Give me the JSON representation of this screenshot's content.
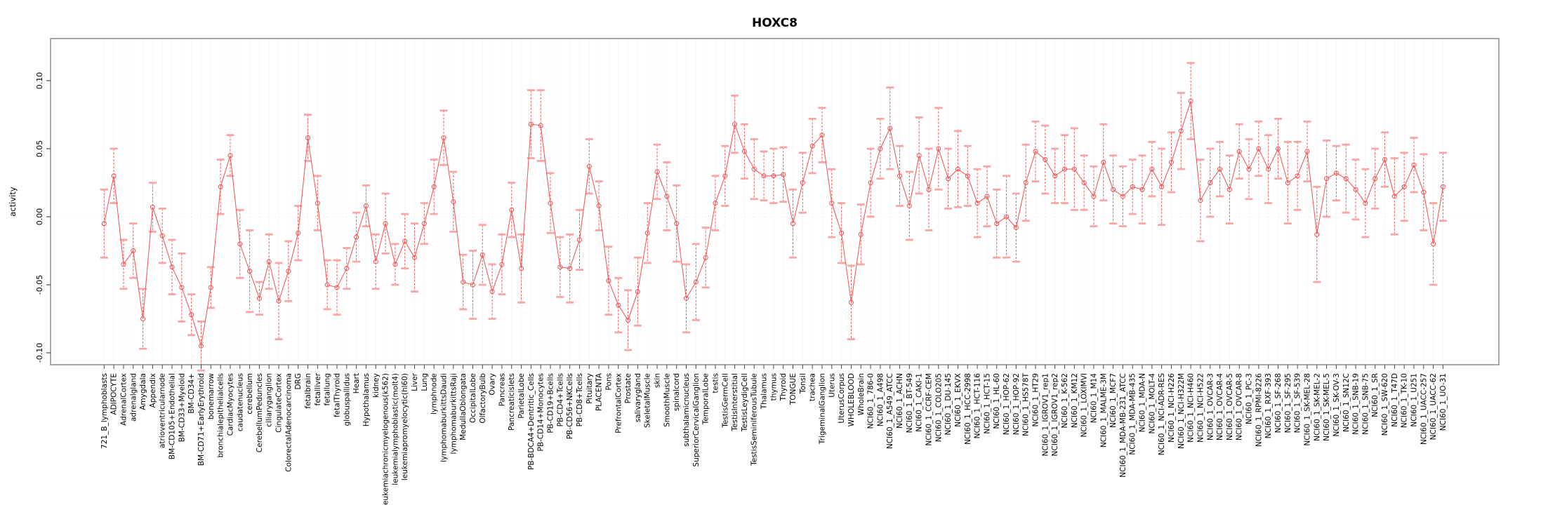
{
  "title": "HOXC8",
  "y_axis": {
    "label": "activity",
    "tick_labels": [
      "0.10",
      "0.05",
      "0.00",
      "-0.05",
      "-0.10"
    ],
    "tick_values": [
      0.1,
      0.05,
      0.0,
      -0.05,
      -0.1
    ]
  },
  "colors": {
    "series_main": "#f25c5c",
    "error_cap": "#f7a6a6",
    "grid": "#dcdcdc",
    "zero_line": "#e2e2e2",
    "box": "#828282",
    "tick": "#4a4a4a",
    "text": "#000000",
    "background": "#ffffff"
  },
  "chart_data": {
    "type": "line",
    "title": "HOXC8",
    "xlabel": "",
    "ylabel": "activity",
    "ylim": [
      -0.11,
      0.13
    ],
    "grid": "dashed vertical gridline per category; dotted horizontal line at 0.00",
    "legend_position": "none",
    "marker": "open-circle",
    "error_bars": true,
    "categories": [
      "721_B_lymphoblasts",
      "ADIPOCYTE",
      "AdrenalCortex",
      "adrenalgland",
      "Amygdala",
      "Appendix",
      "atrioventricularnode",
      "BM-CD105+Endothelial",
      "BM-CD33+Myeloid",
      "BM-CD34+",
      "BM-CD71+EarlyErythroid",
      "bonemarrow",
      "bronchialepithelialcells",
      "CardiacMyocytes",
      "caudatenucleus",
      "cerebellum",
      "CerebellumPeduncles",
      "ciliaryganglion",
      "CingulateCortex",
      "ColorectalAdenocarcinoma",
      "DRG",
      "fetalbrain",
      "fetalliver",
      "fetallung",
      "fetalThyroid",
      "globuspallidus",
      "Heart",
      "Hypothalamus",
      "kidney",
      "leukemiachronicmyelogenous(k562)",
      "leukemialymphoblastic(molt4)",
      "leukemiapromyelocytic(hl60)",
      "Liver",
      "Lung",
      "lymphnode",
      "lymphomaburkittsDaudi",
      "lymphomaburkittsRaji",
      "MedullaOblongata",
      "OccipitalLobe",
      "OlfactoryBulb",
      "Ovary",
      "Pancreas",
      "Pancreaticislets",
      "ParietalLobe",
      "PB-BDCA4+Dentritic_Cells",
      "PB-CD14+Monocytes",
      "PB-CD19+Bcells",
      "PB-CD4+Tcells",
      "PB-CD56+NKCells",
      "PB-CD8+Tcells",
      "Pituitary",
      "PLACENTA",
      "Pons",
      "PrefrontalCortex",
      "Prostate",
      "salivarygland",
      "SkeletalMuscle",
      "skin",
      "SmoothMuscle",
      "spinalcord",
      "subthalamicnucleus",
      "SuperiorCervicalGanglion",
      "TemporalLobe",
      "testis",
      "TestisGermCell",
      "TestisInterstitial",
      "TestisLeydigCell",
      "TestisSeminiferousTubule",
      "Thalamus",
      "thymus",
      "Thyroid",
      "TONGUE",
      "Tonsil",
      "trachea",
      "TrigeminalGanglion",
      "Uterus",
      "UterusCorpus",
      "WHOLEBLOOD",
      "WholeBrain",
      "NCI60_1_786-0",
      "NCI60_1_A498",
      "NCI60_1_A549_ATCC",
      "NCI60_1_ACHN",
      "NCI60_1_BT-549",
      "NCI60_1_CAKI-1",
      "NCI60_1_CCRF-CEM",
      "NCI60_1_COLO205",
      "NCI60_1_DU-145",
      "NCI60_1_EKVX",
      "NCI60_1_HCC-2998",
      "NCI60_1_HCT-116",
      "NCI60_1_HCT-15",
      "NCI60_1_HL-60",
      "NCI60_1_HOP-62",
      "NCI60_1_HOP-92",
      "NCI60_1_HS578T",
      "NCI60_1_HT29",
      "NCI60_1_IGROV1_rep1",
      "NCI60_1_IGROV1_rep2",
      "NCI60_1_K-562",
      "NCI60_1_KM12",
      "NCI60_1_LOXIMVI",
      "NCI60_1_M14",
      "NCI60_1_MALME-3M",
      "NCI60_1_MCF7",
      "NCI60_1_MDA-MB-231_ATCC",
      "NCI60_1_MDA-MB-435",
      "NCI60_1_MDA-N",
      "NCI60_1_MOLT-4",
      "NCI60_1_NCI-ADR-RES",
      "NCI60_1_NCI-H226",
      "NCI60_1_NCI-H322M",
      "NCI60_1_NCI-H460",
      "NCI60_1_NCI-H522",
      "NCI60_1_OVCAR-3",
      "NCI60_1_OVCAR-4",
      "NCI60_1_OVCAR-5",
      "NCI60_1_OVCAR-8",
      "NCI60_1_PC-3",
      "NCI60_1_RPMI-8226",
      "NCI60_1_RXF-393",
      "NCI60_1_SF-268",
      "NCI60_1_SF-295",
      "NCI60_1_SF-539",
      "NCI60_1_SK-MEL-28",
      "NCI60_1_SK-MEL-2",
      "NCI60_1_SK-MEL-5",
      "NCI60_1_SK-OV-3",
      "NCI60_1_SN12C",
      "NCI60_1_SNB-19",
      "NCI60_1_SNB-75",
      "NCI60_1_SR",
      "NCI60_1_SW-620",
      "NCI60_1_T47D",
      "NCI60_1_TK-10",
      "NCI60_1_U251",
      "NCI60_1_UACC-257",
      "NCI60_1_UACC-62",
      "NCI60_1_UO-31"
    ],
    "series": [
      {
        "name": "activity",
        "values": [
          -0.005,
          0.03,
          -0.035,
          -0.025,
          -0.075,
          0.007,
          -0.014,
          -0.037,
          -0.052,
          -0.072,
          -0.095,
          -0.052,
          0.022,
          0.045,
          -0.02,
          -0.04,
          -0.06,
          -0.033,
          -0.062,
          -0.04,
          -0.012,
          0.058,
          0.01,
          -0.05,
          -0.052,
          -0.038,
          -0.015,
          0.008,
          -0.033,
          -0.005,
          -0.035,
          -0.018,
          -0.03,
          -0.005,
          0.022,
          0.058,
          0.011,
          -0.048,
          -0.05,
          -0.028,
          -0.055,
          -0.035,
          0.005,
          -0.038,
          0.068,
          0.067,
          0.01,
          -0.037,
          -0.038,
          -0.017,
          0.037,
          0.008,
          -0.047,
          -0.065,
          -0.076,
          -0.055,
          -0.012,
          0.033,
          0.015,
          -0.005,
          -0.06,
          -0.048,
          -0.03,
          0.01,
          0.03,
          0.068,
          0.048,
          0.035,
          0.03,
          0.03,
          0.031,
          -0.005,
          0.025,
          0.052,
          0.06,
          0.01,
          -0.012,
          -0.063,
          -0.013,
          0.025,
          0.05,
          0.065,
          0.03,
          0.008,
          0.045,
          0.02,
          0.05,
          0.028,
          0.035,
          0.03,
          0.01,
          0.015,
          -0.005,
          0.0,
          -0.008,
          0.025,
          0.048,
          0.042,
          0.03,
          0.035,
          0.035,
          0.025,
          0.015,
          0.04,
          0.02,
          0.015,
          0.022,
          0.02,
          0.035,
          0.022,
          0.04,
          0.063,
          0.085,
          0.012,
          0.025,
          0.035,
          0.02,
          0.048,
          0.035,
          0.05,
          0.035,
          0.05,
          0.025,
          0.03,
          0.048,
          -0.013,
          0.028,
          0.032,
          0.028,
          0.02,
          0.01,
          0.028,
          0.042,
          0.015,
          0.022,
          0.038,
          0.018,
          -0.02,
          0.022
        ],
        "error_half_widths": [
          0.025,
          0.02,
          0.018,
          0.02,
          0.022,
          0.018,
          0.02,
          0.02,
          0.025,
          0.015,
          0.018,
          0.015,
          0.02,
          0.015,
          0.025,
          0.03,
          0.012,
          0.02,
          0.028,
          0.022,
          0.02,
          0.017,
          0.02,
          0.018,
          0.02,
          0.015,
          0.018,
          0.015,
          0.02,
          0.022,
          0.015,
          0.02,
          0.025,
          0.015,
          0.02,
          0.02,
          0.022,
          0.02,
          0.025,
          0.022,
          0.02,
          0.022,
          0.02,
          0.025,
          0.025,
          0.026,
          0.022,
          0.022,
          0.025,
          0.022,
          0.02,
          0.018,
          0.025,
          0.02,
          0.022,
          0.025,
          0.022,
          0.02,
          0.025,
          0.028,
          0.025,
          0.028,
          0.022,
          0.02,
          0.022,
          0.021,
          0.02,
          0.022,
          0.018,
          0.02,
          0.02,
          0.025,
          0.022,
          0.02,
          0.02,
          0.025,
          0.022,
          0.027,
          0.022,
          0.025,
          0.022,
          0.03,
          0.022,
          0.025,
          0.028,
          0.03,
          0.03,
          0.022,
          0.028,
          0.022,
          0.025,
          0.022,
          0.025,
          0.03,
          0.025,
          0.028,
          0.022,
          0.025,
          0.02,
          0.025,
          0.03,
          0.02,
          0.022,
          0.028,
          0.025,
          0.022,
          0.02,
          0.025,
          0.02,
          0.028,
          0.022,
          0.028,
          0.028,
          0.03,
          0.025,
          0.02,
          0.025,
          0.02,
          0.022,
          0.02,
          0.025,
          0.022,
          0.03,
          0.025,
          0.022,
          0.035,
          0.028,
          0.02,
          0.025,
          0.022,
          0.025,
          0.022,
          0.02,
          0.028,
          0.025,
          0.02,
          0.028,
          0.03,
          0.025
        ]
      }
    ]
  }
}
